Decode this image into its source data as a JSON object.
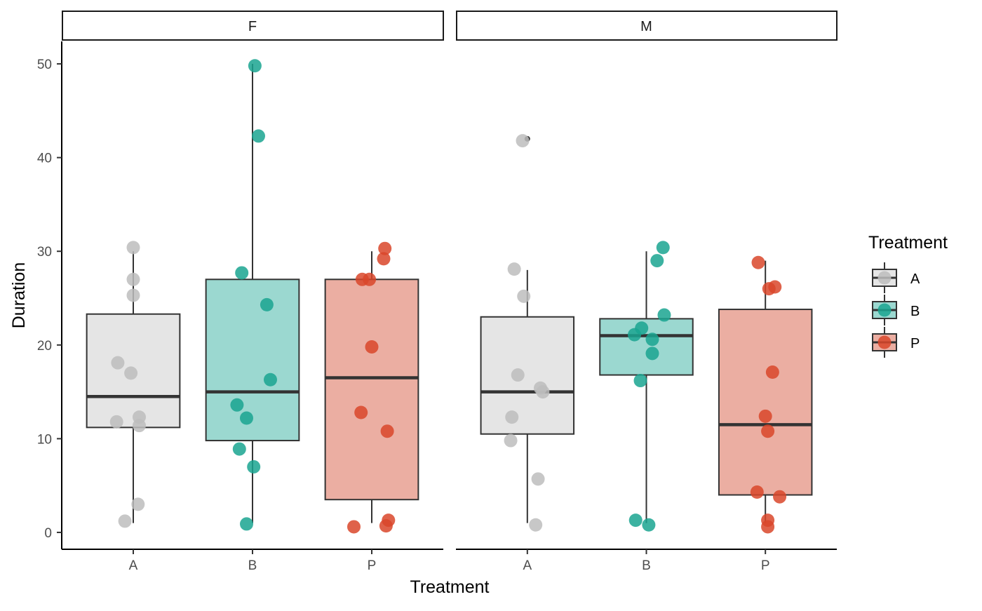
{
  "chart_data": {
    "type": "box",
    "xlabel": "Treatment",
    "ylabel": "Duration",
    "ylim": [
      -1.8,
      52.4
    ],
    "yticks": [
      0,
      10,
      20,
      30,
      40,
      50
    ],
    "categories": [
      "A",
      "B",
      "P"
    ],
    "legend": {
      "title": "Treatment",
      "position": "right",
      "items": [
        {
          "label": "A",
          "fill": "#e5e5e5",
          "point": "#bdbdbd"
        },
        {
          "label": "B",
          "fill": "#9bd8d0",
          "point": "#1aa591"
        },
        {
          "label": "P",
          "fill": "#ebaea2",
          "point": "#d9462a"
        }
      ]
    },
    "panels": [
      {
        "strip": "F",
        "boxes": [
          {
            "category": "A",
            "q1": 11.2,
            "median": 14.5,
            "q3": 23.3,
            "whisker_low": 1.0,
            "whisker_high": 30.0,
            "outliers": [],
            "points": [
              [
                0.0,
                30.4
              ],
              [
                0.0,
                27.0
              ],
              [
                0.0,
                25.3
              ],
              [
                -0.13,
                18.1
              ],
              [
                -0.02,
                17.0
              ],
              [
                0.05,
                11.4
              ],
              [
                0.05,
                12.3
              ],
              [
                -0.14,
                11.8
              ],
              [
                0.04,
                3.0
              ],
              [
                -0.07,
                1.2
              ]
            ]
          },
          {
            "category": "B",
            "q1": 9.8,
            "median": 15.0,
            "q3": 27.0,
            "whisker_low": 1.0,
            "whisker_high": 50.0,
            "outliers": [],
            "points": [
              [
                0.02,
                49.8
              ],
              [
                0.05,
                42.3
              ],
              [
                -0.09,
                27.7
              ],
              [
                0.12,
                24.3
              ],
              [
                0.15,
                16.3
              ],
              [
                -0.13,
                13.6
              ],
              [
                -0.05,
                12.2
              ],
              [
                -0.11,
                8.9
              ],
              [
                0.01,
                7.0
              ],
              [
                -0.05,
                0.9
              ]
            ]
          },
          {
            "category": "P",
            "q1": 3.5,
            "median": 16.5,
            "q3": 27.0,
            "whisker_low": 1.0,
            "whisker_high": 30.0,
            "outliers": [],
            "points": [
              [
                0.11,
                30.3
              ],
              [
                0.1,
                29.2
              ],
              [
                -0.08,
                27.0
              ],
              [
                -0.02,
                27.0
              ],
              [
                0.0,
                19.8
              ],
              [
                -0.09,
                12.8
              ],
              [
                0.13,
                10.8
              ],
              [
                0.14,
                1.3
              ],
              [
                0.12,
                0.7
              ],
              [
                -0.15,
                0.6
              ]
            ]
          }
        ]
      },
      {
        "strip": "M",
        "boxes": [
          {
            "category": "A",
            "q1": 10.5,
            "median": 15.0,
            "q3": 23.0,
            "whisker_low": 1.0,
            "whisker_high": 28.0,
            "outliers": [
              42.0
            ],
            "points": [
              [
                -0.04,
                41.8
              ],
              [
                -0.11,
                28.1
              ],
              [
                -0.03,
                25.2
              ],
              [
                -0.08,
                16.8
              ],
              [
                0.11,
                15.4
              ],
              [
                0.13,
                15.0
              ],
              [
                -0.13,
                12.3
              ],
              [
                -0.14,
                9.8
              ],
              [
                0.09,
                5.7
              ],
              [
                0.07,
                0.8
              ]
            ]
          },
          {
            "category": "B",
            "q1": 16.8,
            "median": 21.0,
            "q3": 22.8,
            "whisker_low": 1.0,
            "whisker_high": 30.0,
            "outliers": [],
            "points": [
              [
                0.14,
                30.4
              ],
              [
                0.09,
                29.0
              ],
              [
                0.15,
                23.2
              ],
              [
                -0.04,
                21.8
              ],
              [
                -0.1,
                21.1
              ],
              [
                0.05,
                20.6
              ],
              [
                0.05,
                19.1
              ],
              [
                -0.05,
                16.2
              ],
              [
                -0.09,
                1.3
              ],
              [
                0.02,
                0.8
              ]
            ]
          },
          {
            "category": "P",
            "q1": 4.0,
            "median": 11.5,
            "q3": 23.8,
            "whisker_low": 1.0,
            "whisker_high": 29.0,
            "outliers": [],
            "points": [
              [
                -0.06,
                28.8
              ],
              [
                0.03,
                26.0
              ],
              [
                0.08,
                26.2
              ],
              [
                0.06,
                17.1
              ],
              [
                0.0,
                12.4
              ],
              [
                0.02,
                10.8
              ],
              [
                -0.07,
                4.3
              ],
              [
                0.12,
                3.8
              ],
              [
                0.02,
                1.3
              ],
              [
                0.02,
                0.6
              ]
            ]
          }
        ]
      }
    ]
  }
}
